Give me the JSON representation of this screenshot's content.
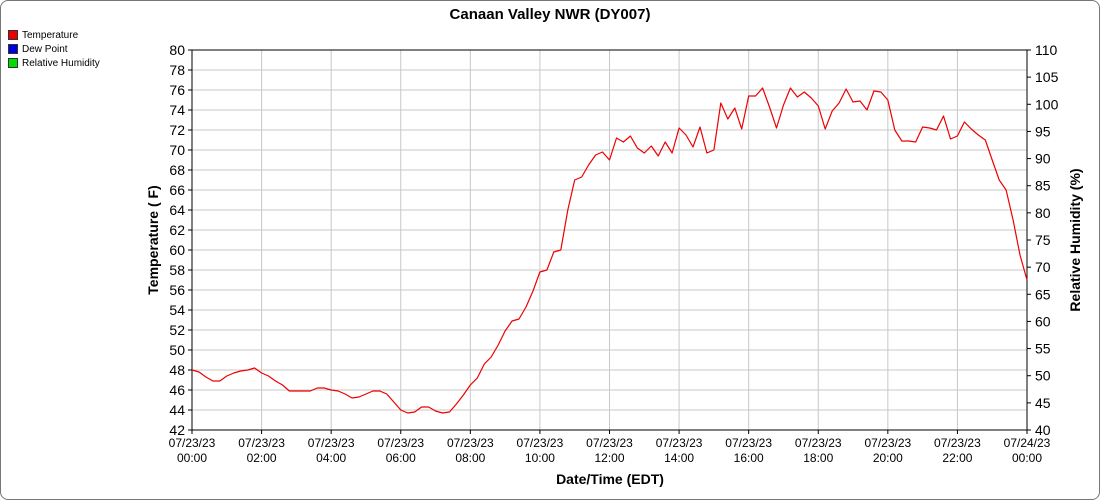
{
  "chart_data": {
    "type": "line",
    "title": "Canaan Valley NWR (DY007)",
    "xlabel": "Date/Time (EDT)",
    "ylabel_left": "Temperature ( F)",
    "ylabel_right": "Relative Humidity (%)",
    "ylim_left": [
      42,
      80
    ],
    "ylim_right": [
      40,
      110
    ],
    "xlim_hours": [
      0,
      24
    ],
    "grid": true,
    "legend_placement": "top-left",
    "y_ticks_left": [
      "42",
      "44",
      "46",
      "48",
      "50",
      "52",
      "54",
      "56",
      "58",
      "60",
      "62",
      "64",
      "66",
      "68",
      "70",
      "72",
      "74",
      "76",
      "78",
      "80"
    ],
    "y_ticks_right": [
      "40",
      "45",
      "50",
      "55",
      "60",
      "65",
      "70",
      "75",
      "80",
      "85",
      "90",
      "95",
      "100",
      "105",
      "110"
    ],
    "x_ticks": [
      {
        "date": "07/23/23",
        "time": "00:00"
      },
      {
        "date": "07/23/23",
        "time": "02:00"
      },
      {
        "date": "07/23/23",
        "time": "04:00"
      },
      {
        "date": "07/23/23",
        "time": "06:00"
      },
      {
        "date": "07/23/23",
        "time": "08:00"
      },
      {
        "date": "07/23/23",
        "time": "10:00"
      },
      {
        "date": "07/23/23",
        "time": "12:00"
      },
      {
        "date": "07/23/23",
        "time": "14:00"
      },
      {
        "date": "07/23/23",
        "time": "16:00"
      },
      {
        "date": "07/23/23",
        "time": "18:00"
      },
      {
        "date": "07/23/23",
        "time": "20:00"
      },
      {
        "date": "07/23/23",
        "time": "22:00"
      },
      {
        "date": "07/24/23",
        "time": "00:00"
      }
    ],
    "series": [
      {
        "name": "Temperature",
        "color": "#ee0000",
        "axis": "left",
        "points": [
          [
            0,
            48.0
          ],
          [
            0.2,
            47.8
          ],
          [
            0.4,
            47.3
          ],
          [
            0.6,
            46.9
          ],
          [
            0.8,
            46.9
          ],
          [
            1.0,
            47.4
          ],
          [
            1.2,
            47.7
          ],
          [
            1.4,
            47.9
          ],
          [
            1.6,
            48.0
          ],
          [
            1.8,
            48.2
          ],
          [
            2.0,
            47.7
          ],
          [
            2.2,
            47.4
          ],
          [
            2.4,
            46.9
          ],
          [
            2.6,
            46.5
          ],
          [
            2.8,
            45.9
          ],
          [
            3.0,
            45.9
          ],
          [
            3.2,
            45.9
          ],
          [
            3.4,
            45.9
          ],
          [
            3.6,
            46.2
          ],
          [
            3.8,
            46.2
          ],
          [
            4.0,
            46.0
          ],
          [
            4.2,
            45.9
          ],
          [
            4.4,
            45.6
          ],
          [
            4.6,
            45.2
          ],
          [
            4.8,
            45.3
          ],
          [
            5.0,
            45.6
          ],
          [
            5.2,
            45.9
          ],
          [
            5.4,
            45.9
          ],
          [
            5.6,
            45.6
          ],
          [
            5.8,
            44.8
          ],
          [
            6.0,
            44.0
          ],
          [
            6.2,
            43.7
          ],
          [
            6.4,
            43.8
          ],
          [
            6.6,
            44.3
          ],
          [
            6.8,
            44.3
          ],
          [
            7.0,
            43.9
          ],
          [
            7.2,
            43.7
          ],
          [
            7.4,
            43.8
          ],
          [
            7.6,
            44.6
          ],
          [
            7.8,
            45.5
          ],
          [
            8.0,
            46.5
          ],
          [
            8.2,
            47.2
          ],
          [
            8.4,
            48.6
          ],
          [
            8.6,
            49.3
          ],
          [
            8.8,
            50.5
          ],
          [
            9.0,
            51.9
          ],
          [
            9.2,
            52.9
          ],
          [
            9.4,
            53.1
          ],
          [
            9.6,
            54.3
          ],
          [
            9.8,
            55.9
          ],
          [
            10.0,
            57.8
          ],
          [
            10.2,
            58.0
          ],
          [
            10.4,
            59.8
          ],
          [
            10.6,
            60.0
          ],
          [
            10.8,
            64.0
          ],
          [
            11.0,
            67.0
          ],
          [
            11.2,
            67.3
          ],
          [
            11.4,
            68.5
          ],
          [
            11.6,
            69.5
          ],
          [
            11.8,
            69.8
          ],
          [
            12.0,
            69.0
          ],
          [
            12.2,
            71.2
          ],
          [
            12.4,
            70.8
          ],
          [
            12.6,
            71.4
          ],
          [
            12.8,
            70.2
          ],
          [
            13.0,
            69.7
          ],
          [
            13.2,
            70.4
          ],
          [
            13.4,
            69.4
          ],
          [
            13.6,
            70.8
          ],
          [
            13.8,
            69.7
          ],
          [
            14.0,
            72.2
          ],
          [
            14.2,
            71.5
          ],
          [
            14.4,
            70.3
          ],
          [
            14.6,
            72.3
          ],
          [
            14.8,
            69.7
          ],
          [
            15.0,
            70.0
          ],
          [
            15.2,
            74.7
          ],
          [
            15.4,
            73.1
          ],
          [
            15.6,
            74.2
          ],
          [
            15.8,
            72.1
          ],
          [
            16.0,
            75.4
          ],
          [
            16.2,
            75.4
          ],
          [
            16.4,
            76.2
          ],
          [
            16.6,
            74.3
          ],
          [
            16.8,
            72.2
          ],
          [
            17.0,
            74.5
          ],
          [
            17.2,
            76.2
          ],
          [
            17.4,
            75.3
          ],
          [
            17.6,
            75.8
          ],
          [
            17.8,
            75.2
          ],
          [
            18.0,
            74.4
          ],
          [
            18.2,
            72.1
          ],
          [
            18.4,
            73.9
          ],
          [
            18.6,
            74.7
          ],
          [
            18.8,
            76.1
          ],
          [
            19.0,
            74.8
          ],
          [
            19.2,
            74.9
          ],
          [
            19.4,
            74.0
          ],
          [
            19.6,
            75.9
          ],
          [
            19.8,
            75.8
          ],
          [
            20.0,
            75.0
          ],
          [
            20.2,
            72.0
          ],
          [
            20.4,
            70.9
          ],
          [
            20.6,
            70.9
          ],
          [
            20.8,
            70.8
          ],
          [
            21.0,
            72.3
          ],
          [
            21.2,
            72.2
          ],
          [
            21.4,
            72.0
          ],
          [
            21.6,
            73.4
          ],
          [
            21.8,
            71.1
          ],
          [
            22.0,
            71.4
          ],
          [
            22.2,
            72.8
          ],
          [
            22.4,
            72.1
          ],
          [
            22.6,
            71.5
          ],
          [
            22.8,
            71.0
          ],
          [
            23.0,
            69.0
          ],
          [
            23.2,
            67.0
          ],
          [
            23.4,
            66.0
          ],
          [
            23.6,
            63.0
          ],
          [
            23.8,
            59.5
          ],
          [
            24.0,
            57.0
          ]
        ]
      },
      {
        "name": "Dew Point",
        "color": "#0000dd",
        "axis": "left",
        "points": []
      },
      {
        "name": "Relative Humidity",
        "color": "#00dd00",
        "axis": "right",
        "points": []
      }
    ]
  }
}
